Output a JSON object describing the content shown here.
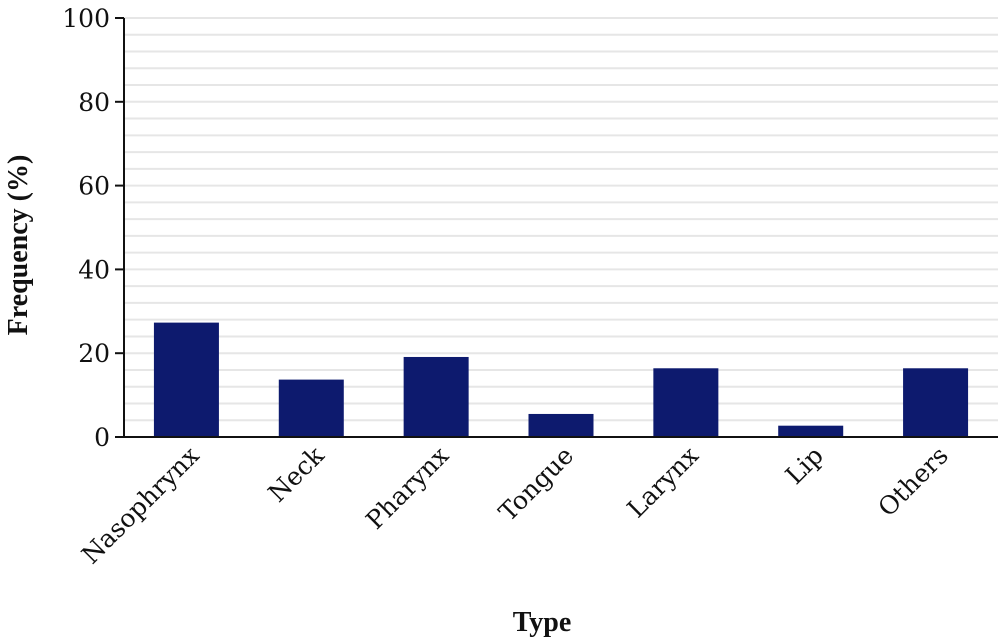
{
  "chart_data": {
    "type": "bar",
    "categories": [
      "Nasophrynx",
      "Neck",
      "Pharynx",
      "Tongue",
      "Larynx",
      "Lip",
      "Others"
    ],
    "values": [
      27.3,
      13.7,
      19.1,
      5.5,
      16.4,
      2.7,
      16.4
    ],
    "xlabel": "Type",
    "ylabel": "Frequency (%)",
    "ylim": [
      0,
      100
    ],
    "yticks": [
      0,
      20,
      40,
      60,
      80,
      100
    ],
    "minor_grid_step": 4,
    "grid": true,
    "colors": {
      "bar": "#0d1a6e",
      "grid": "#e6e6e6",
      "axis": "#111111"
    }
  }
}
